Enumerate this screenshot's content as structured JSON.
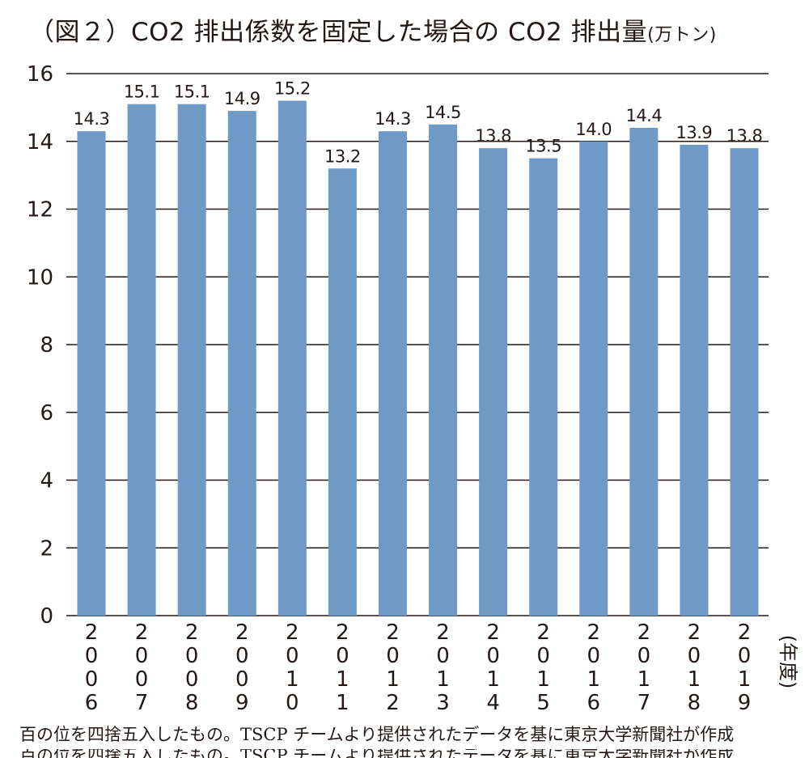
{
  "title": {
    "main": "（図２）CO2 排出係数を固定した場合の CO2 排出量",
    "unit": "(万トン)"
  },
  "x_unit": "(年度)",
  "note": "百の位を四捨五入したもの。TSCP チームより提供されたデータを基に東京大学新聞社が作成",
  "colors": {
    "bar": "#6f9ac6",
    "gridline": "#231815",
    "text": "#231815"
  },
  "chart_data": {
    "type": "bar",
    "title": "（図２）CO2 排出係数を固定した場合の CO2 排出量",
    "ylabel": "(万トン)",
    "xlabel": "(年度)",
    "categories": [
      "2006",
      "2007",
      "2008",
      "2009",
      "2010",
      "2011",
      "2012",
      "2013",
      "2014",
      "2015",
      "2016",
      "2017",
      "2018",
      "2019"
    ],
    "values": [
      14.3,
      15.1,
      15.1,
      14.9,
      15.2,
      13.2,
      14.3,
      14.5,
      13.8,
      13.5,
      14.0,
      14.4,
      13.9,
      13.8
    ],
    "value_labels": [
      "14.3",
      "15.1",
      "15.1",
      "14.9",
      "15.2",
      "13.2",
      "14.3",
      "14.5",
      "13.8",
      "13.5",
      "14.0",
      "14.4",
      "13.9",
      "13.8"
    ],
    "ylim": [
      0,
      16
    ],
    "yticks": [
      0,
      2,
      4,
      6,
      8,
      10,
      12,
      14,
      16
    ],
    "grid": true,
    "legend": "none"
  }
}
